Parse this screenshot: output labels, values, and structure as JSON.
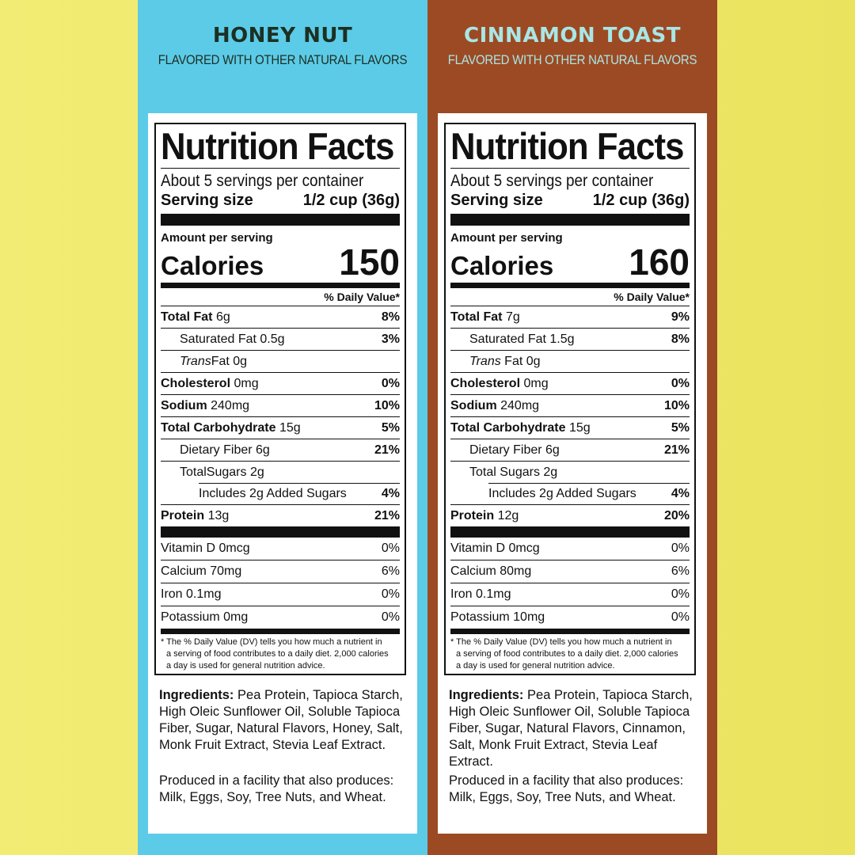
{
  "colors": {
    "left_panel": "#5ccbe8",
    "right_panel": "#9c4a23",
    "background": "#efe86a"
  },
  "products": [
    {
      "title": "HONEY NUT",
      "subtitle": "FLAVORED WITH OTHER NATURAL FLAVORS",
      "nutrition_title": "Nutrition Facts",
      "servings": "About 5 servings per container",
      "serving_size_label": "Serving size",
      "serving_size_value": "1/2 cup (36g)",
      "amount_label": "Amount per serving",
      "calories_label": "Calories",
      "calories": "150",
      "dv_header": "% Daily Value*",
      "total_fat": {
        "label": "Total Fat",
        "amount": "6g",
        "dv": "8%"
      },
      "saturated_fat": {
        "label": "Saturated Fat 0.5g",
        "dv": "3%"
      },
      "trans_fat": {
        "label_italic": "Trans",
        "label_rest": "Fat 0g"
      },
      "cholesterol": {
        "label": "Cholesterol",
        "amount": "0mg",
        "dv": "0%"
      },
      "sodium": {
        "label": "Sodium",
        "amount": "240mg",
        "dv": "10%"
      },
      "total_carb": {
        "label": "Total Carbohydrate",
        "amount": "15g",
        "dv": "5%"
      },
      "fiber": {
        "label": "Dietary Fiber 6g",
        "dv": "21%"
      },
      "sugars": {
        "label": "TotalSugars 2g"
      },
      "added_sugars": {
        "label": "Includes 2g Added Sugars",
        "dv": "4%"
      },
      "protein": {
        "label": "Protein",
        "amount": "13g",
        "dv": "21%"
      },
      "vitamin_d": {
        "label": "Vitamin D 0mcg",
        "dv": "0%"
      },
      "calcium": {
        "label": "Calcium 70mg",
        "dv": "6%"
      },
      "iron": {
        "label": "Iron 0.1mg",
        "dv": "0%"
      },
      "potassium": {
        "label": "Potassium 0mg",
        "dv": "0%"
      },
      "footnote_1": "* The % Daily Value (DV) tells you how much a nutrient in",
      "footnote_2": "a serving of food contributes to a daily diet. 2,000 calories",
      "footnote_3": "a day is used for general nutrition advice.",
      "ingredients_label": "Ingredients:",
      "ingredients_text": "Pea Protein, Tapioca Starch, High Oleic Sunflower Oil, Soluble Tapioca Fiber, Sugar, Natural Flavors, Honey, Salt, Monk Fruit Extract, Stevia Leaf Extract.",
      "produced_text": "Produced in a facility that also produces: Milk, Eggs, Soy, Tree Nuts, and Wheat."
    },
    {
      "title": "CINNAMON TOAST",
      "subtitle": "FLAVORED WITH OTHER NATURAL FLAVORS",
      "nutrition_title": "Nutrition Facts",
      "servings": "About 5 servings per container",
      "serving_size_label": "Serving size",
      "serving_size_value": "1/2 cup (36g)",
      "amount_label": "Amount per serving",
      "calories_label": "Calories",
      "calories": "160",
      "dv_header": "% Daily Value*",
      "total_fat": {
        "label": "Total Fat",
        "amount": "7g",
        "dv": "9%"
      },
      "saturated_fat": {
        "label": "Saturated Fat 1.5g",
        "dv": "8%"
      },
      "trans_fat": {
        "label_italic": "Trans",
        "label_rest": "Fat 0g"
      },
      "cholesterol": {
        "label": "Cholesterol",
        "amount": "0mg",
        "dv": "0%"
      },
      "sodium": {
        "label": "Sodium",
        "amount": "240mg",
        "dv": "10%"
      },
      "total_carb": {
        "label": "Total Carbohydrate",
        "amount": "15g",
        "dv": "5%"
      },
      "fiber": {
        "label": "Dietary Fiber 6g",
        "dv": "21%"
      },
      "sugars": {
        "label": "Total Sugars 2g"
      },
      "added_sugars": {
        "label": "Includes 2g Added Sugars",
        "dv": "4%"
      },
      "protein": {
        "label": "Protein",
        "amount": "12g",
        "dv": "20%"
      },
      "vitamin_d": {
        "label": "Vitamin D 0mcg",
        "dv": "0%"
      },
      "calcium": {
        "label": "Calcium 80mg",
        "dv": "6%"
      },
      "iron": {
        "label": "Iron 0.1mg",
        "dv": "0%"
      },
      "potassium": {
        "label": "Potassium 10mg",
        "dv": "0%"
      },
      "footnote_1": "* The % Daily Value (DV) tells you how much a nutrient in",
      "footnote_2": "a serving of food contributes to a daily diet. 2,000 calories",
      "footnote_3": "a day is used for general nutrition advice.",
      "ingredients_label": "Ingredients:",
      "ingredients_text": "Pea Protein, Tapioca Starch, High Oleic Sunflower Oil, Soluble Tapioca Fiber, Sugar, Natural Flavors, Cinnamon, Salt, Monk Fruit Extract, Stevia Leaf Extract.",
      "produced_text": "Produced in a facility that also produces: Milk, Eggs, Soy, Tree Nuts, and Wheat."
    }
  ]
}
